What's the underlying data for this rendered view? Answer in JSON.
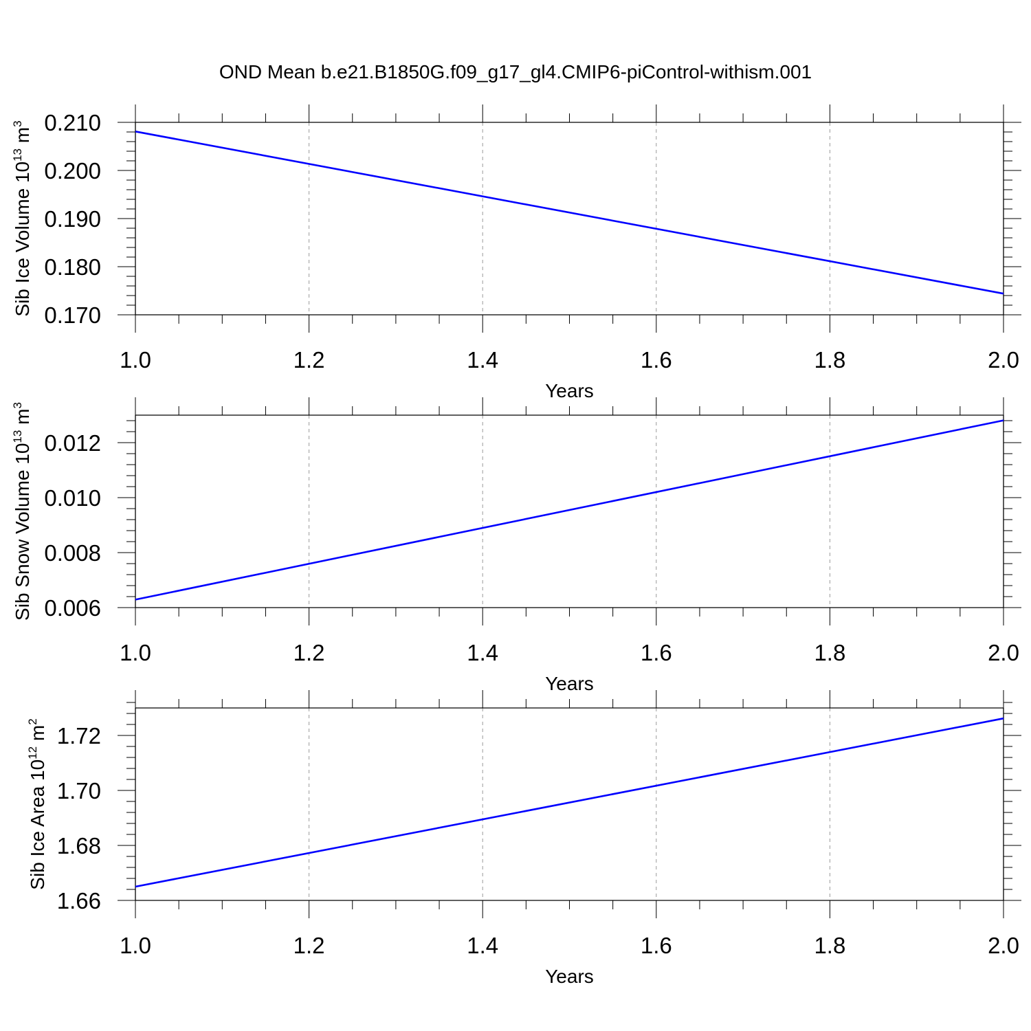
{
  "title": "OND Mean b.e21.B1850G.f09_g17_gl4.CMIP6-piControl-withism.001",
  "colors": {
    "series": "#0000ff",
    "axis": "#000000",
    "grid": "#9a9a9a"
  },
  "chart_data": [
    {
      "type": "line",
      "ylabel": "Sib Ice Volume",
      "yunit": {
        "base": "10",
        "exp": "13",
        "unit": "m",
        "unit_exp": "3"
      },
      "xlabel": "Years",
      "x": [
        1.0,
        2.0
      ],
      "series": [
        {
          "values": [
            0.2081,
            0.1744
          ]
        }
      ],
      "xlim": [
        1.0,
        2.0
      ],
      "ylim": [
        0.17,
        0.21
      ],
      "xticks": [
        "1.0",
        "1.2",
        "1.4",
        "1.6",
        "1.8",
        "2.0"
      ],
      "yticks": [
        "0.170",
        "0.180",
        "0.190",
        "0.200",
        "0.210"
      ],
      "ytick_values": [
        0.17,
        0.18,
        0.19,
        0.2,
        0.21
      ],
      "grid": "dashed vertical at major x ticks"
    },
    {
      "type": "line",
      "ylabel": "Sib Snow Volume",
      "yunit": {
        "base": "10",
        "exp": "13",
        "unit": "m",
        "unit_exp": "3"
      },
      "xlabel": "Years",
      "x": [
        1.0,
        2.0
      ],
      "series": [
        {
          "values": [
            0.00629,
            0.01281
          ]
        }
      ],
      "xlim": [
        1.0,
        2.0
      ],
      "ylim": [
        0.006,
        0.013
      ],
      "xticks": [
        "1.0",
        "1.2",
        "1.4",
        "1.6",
        "1.8",
        "2.0"
      ],
      "yticks": [
        "0.006",
        "0.008",
        "0.010",
        "0.012"
      ],
      "ytick_values": [
        0.006,
        0.008,
        0.01,
        0.012
      ],
      "grid": "dashed vertical at major x ticks"
    },
    {
      "type": "line",
      "ylabel": "Sib Ice Area",
      "yunit": {
        "base": "10",
        "exp": "12",
        "unit": "m",
        "unit_exp": "2"
      },
      "xlabel": "Years",
      "x": [
        1.0,
        2.0
      ],
      "series": [
        {
          "values": [
            1.665,
            1.7262
          ]
        }
      ],
      "xlim": [
        1.0,
        2.0
      ],
      "ylim": [
        1.66,
        1.73
      ],
      "xticks": [
        "1.0",
        "1.2",
        "1.4",
        "1.6",
        "1.8",
        "2.0"
      ],
      "yticks": [
        "1.66",
        "1.68",
        "1.70",
        "1.72"
      ],
      "ytick_values": [
        1.66,
        1.68,
        1.7,
        1.72
      ],
      "grid": "dashed vertical at major x ticks"
    }
  ]
}
